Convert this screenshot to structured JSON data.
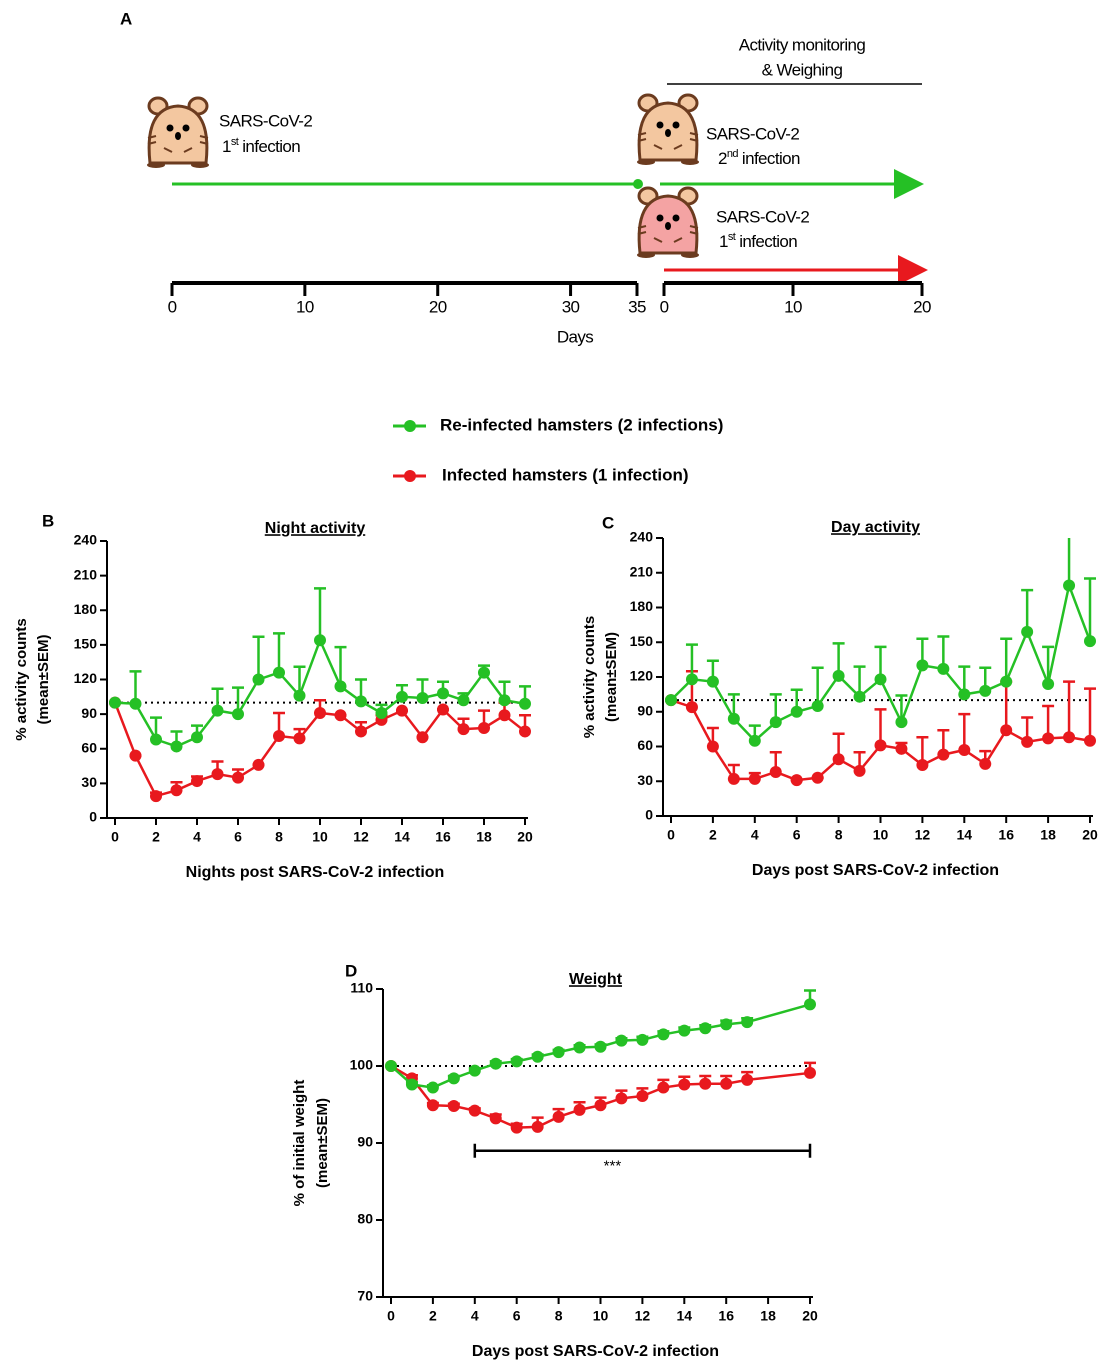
{
  "panel_a": {
    "label": "A",
    "monitoring": [
      "Activity monitoring",
      "& Weighing"
    ],
    "group_1": {
      "virus": "SARS-CoV-2",
      "ordinal": "1",
      "suffix": "st",
      "text": "infection"
    },
    "group_2": {
      "virus": "SARS-CoV-2",
      "ordinal": "2",
      "suffix": "nd",
      "text": "infection"
    },
    "group_3": {
      "virus": "SARS-CoV-2",
      "ordinal": "1",
      "suffix": "st",
      "text": "infection"
    },
    "axis_1": {
      "xlim": [
        0,
        35
      ],
      "xticks": [
        0,
        10,
        20,
        30,
        35
      ]
    },
    "axis_2": {
      "xlim": [
        0,
        20
      ],
      "xticks": [
        0,
        10,
        20
      ]
    },
    "xlabel": "Days"
  },
  "chart_data": [
    {
      "type": "line",
      "panel": "B",
      "title": "Night activity",
      "xlabel": "Nights post SARS-CoV-2 infection",
      "ylabel": [
        "% activity counts",
        "(mean±SEM)"
      ],
      "x": [
        0,
        1,
        2,
        3,
        4,
        5,
        6,
        7,
        8,
        9,
        10,
        11,
        12,
        13,
        14,
        15,
        16,
        17,
        18,
        19,
        20
      ],
      "xlim": [
        0,
        20
      ],
      "xticks": [
        0,
        2,
        4,
        6,
        8,
        10,
        12,
        14,
        16,
        18,
        20
      ],
      "ylim": [
        0,
        240
      ],
      "yticks": [
        0,
        30,
        60,
        90,
        120,
        150,
        180,
        210,
        240
      ],
      "refline": 100,
      "series": [
        {
          "name": "Re-infected hamsters (2 infections)",
          "color": "#25c025",
          "values": [
            100,
            99,
            68,
            62,
            70,
            93,
            90,
            120,
            126,
            106,
            154,
            114,
            101,
            91,
            105,
            104,
            108,
            102,
            126,
            102,
            99
          ],
          "errors": [
            0,
            28,
            19,
            13,
            10,
            19,
            23,
            37,
            34,
            25,
            45,
            34,
            19,
            7,
            10,
            16,
            10,
            6,
            6,
            16,
            15
          ]
        },
        {
          "name": "Infected hamsters (1 infection)",
          "color": "#e8191e",
          "values": [
            100,
            54,
            19,
            24,
            32,
            38,
            35,
            46,
            71,
            69,
            91,
            89,
            75,
            85,
            93,
            70,
            94,
            77,
            78,
            89,
            75
          ],
          "errors": [
            0,
            0,
            3,
            7,
            4,
            11,
            7,
            0,
            20,
            8,
            11,
            0,
            8,
            4,
            0,
            0,
            0,
            9,
            15,
            11,
            14
          ]
        }
      ]
    },
    {
      "type": "line",
      "panel": "C",
      "title": "Day activity",
      "xlabel": "Days post SARS-CoV-2 infection",
      "ylabel": [
        "% activity counts",
        "(mean±SEM)"
      ],
      "x": [
        0,
        1,
        2,
        3,
        4,
        5,
        6,
        7,
        8,
        9,
        10,
        11,
        12,
        13,
        14,
        15,
        16,
        17,
        18,
        19,
        20
      ],
      "xlim": [
        0,
        20
      ],
      "xticks": [
        0,
        2,
        4,
        6,
        8,
        10,
        12,
        14,
        16,
        18,
        20
      ],
      "ylim": [
        0,
        240
      ],
      "yticks": [
        0,
        30,
        60,
        90,
        120,
        150,
        180,
        210,
        240
      ],
      "refline": 100,
      "series": [
        {
          "color": "#25c025",
          "values": [
            100,
            118,
            116,
            84,
            65,
            81,
            90,
            95,
            121,
            103,
            118,
            81,
            130,
            127,
            105,
            108,
            116,
            159,
            114,
            199,
            151
          ],
          "errors": [
            0,
            30,
            18,
            21,
            13,
            24,
            19,
            33,
            28,
            26,
            28,
            23,
            23,
            28,
            24,
            20,
            37,
            36,
            32,
            45,
            54
          ]
        },
        {
          "color": "#e8191e",
          "values": [
            100,
            94,
            60,
            32,
            32,
            38,
            31,
            33,
            49,
            39,
            61,
            58,
            44,
            53,
            57,
            45,
            74,
            64,
            67,
            68,
            65
          ],
          "errors": [
            0,
            31,
            16,
            12,
            5,
            17,
            0,
            0,
            22,
            16,
            31,
            5,
            24,
            21,
            31,
            11,
            42,
            21,
            28,
            48,
            45
          ]
        }
      ]
    },
    {
      "type": "line",
      "panel": "D",
      "title": "Weight",
      "xlabel": "Days post SARS-CoV-2 infection",
      "ylabel": [
        "% of initial weight",
        "(mean±SEM)"
      ],
      "x": [
        0,
        1,
        2,
        3,
        4,
        5,
        6,
        7,
        8,
        9,
        10,
        11,
        12,
        13,
        14,
        15,
        16,
        17,
        20
      ],
      "xlim": [
        0,
        20
      ],
      "xticks": [
        0,
        2,
        4,
        6,
        8,
        10,
        12,
        14,
        16,
        18,
        20
      ],
      "ylim": [
        70,
        110
      ],
      "yticks": [
        70,
        80,
        90,
        100,
        110
      ],
      "refline": 100,
      "significance": {
        "label": "***",
        "x": [
          4,
          20
        ],
        "y": 89
      },
      "series": [
        {
          "color": "#25c025",
          "values": [
            100,
            97.6,
            97.2,
            98.4,
            99.4,
            100.3,
            100.6,
            101.2,
            101.8,
            102.4,
            102.5,
            103.3,
            103.4,
            104.1,
            104.6,
            104.9,
            105.4,
            105.7,
            108
          ],
          "errors": [
            0,
            0.3,
            0.3,
            0.3,
            0.3,
            0.3,
            0.3,
            0.3,
            0.3,
            0.3,
            0.3,
            0.3,
            0.4,
            0.4,
            0.4,
            0.4,
            0.5,
            0.5,
            1.8
          ]
        },
        {
          "color": "#e8191e",
          "values": [
            100,
            98.4,
            94.9,
            94.8,
            94.2,
            93.2,
            92,
            92.1,
            93.4,
            94.3,
            94.9,
            95.8,
            96.1,
            97.2,
            97.6,
            97.7,
            97.7,
            98.2,
            99.1
          ],
          "errors": [
            0,
            0.4,
            0.3,
            0.3,
            0.3,
            0.5,
            0.5,
            1.2,
            1,
            1,
            1,
            1,
            1,
            1,
            1,
            1,
            1,
            1,
            1.3
          ]
        }
      ]
    }
  ]
}
